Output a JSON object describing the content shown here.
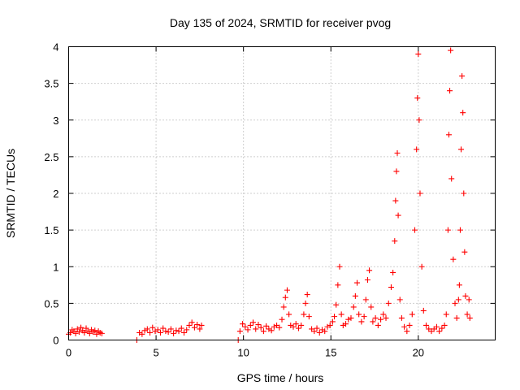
{
  "chart_data": {
    "type": "scatter",
    "title": "Day 135 of 2024, SRMTID for receiver pvog",
    "xlabel": "GPS time / hours",
    "ylabel": "SRMTID / TECUs",
    "xlim": [
      0,
      24.4
    ],
    "ylim": [
      0,
      4
    ],
    "grid": true,
    "xticks": [
      0,
      5,
      10,
      15,
      20
    ],
    "xtick_labels": [
      "0",
      "5",
      "10",
      "15",
      "20"
    ],
    "yticks": [
      0,
      0.5,
      1,
      1.5,
      2,
      2.5,
      3,
      3.5,
      4
    ],
    "ytick_labels": [
      "0",
      "0.5",
      "1",
      "1.5",
      "2",
      "2.5",
      "3",
      "3.5",
      "4"
    ],
    "marker": "+",
    "color": "#ff0000",
    "series": [
      {
        "name": "SRMTID",
        "points": [
          [
            0.0,
            0.08
          ],
          [
            0.1,
            0.1
          ],
          [
            0.2,
            0.14
          ],
          [
            0.3,
            0.12
          ],
          [
            0.4,
            0.09
          ],
          [
            0.5,
            0.15
          ],
          [
            0.6,
            0.11
          ],
          [
            0.7,
            0.17
          ],
          [
            0.8,
            0.13
          ],
          [
            0.9,
            0.1
          ],
          [
            1.0,
            0.16
          ],
          [
            1.1,
            0.12
          ],
          [
            1.2,
            0.09
          ],
          [
            1.3,
            0.14
          ],
          [
            1.4,
            0.11
          ],
          [
            1.5,
            0.13
          ],
          [
            1.6,
            0.08
          ],
          [
            1.7,
            0.12
          ],
          [
            1.8,
            0.1
          ],
          [
            1.9,
            0.09
          ],
          [
            3.9,
            0.0
          ],
          [
            4.05,
            0.1
          ],
          [
            4.2,
            0.08
          ],
          [
            4.35,
            0.13
          ],
          [
            4.5,
            0.15
          ],
          [
            4.65,
            0.1
          ],
          [
            4.8,
            0.17
          ],
          [
            4.95,
            0.12
          ],
          [
            5.1,
            0.14
          ],
          [
            5.25,
            0.1
          ],
          [
            5.4,
            0.16
          ],
          [
            5.55,
            0.12
          ],
          [
            5.7,
            0.11
          ],
          [
            5.85,
            0.15
          ],
          [
            6.0,
            0.09
          ],
          [
            6.15,
            0.13
          ],
          [
            6.3,
            0.12
          ],
          [
            6.45,
            0.16
          ],
          [
            6.6,
            0.1
          ],
          [
            6.75,
            0.14
          ],
          [
            6.9,
            0.2
          ],
          [
            7.05,
            0.24
          ],
          [
            7.2,
            0.17
          ],
          [
            7.35,
            0.21
          ],
          [
            7.5,
            0.15
          ],
          [
            7.6,
            0.2
          ],
          [
            9.7,
            0.0
          ],
          [
            9.8,
            0.12
          ],
          [
            9.95,
            0.22
          ],
          [
            10.1,
            0.18
          ],
          [
            10.25,
            0.14
          ],
          [
            10.4,
            0.2
          ],
          [
            10.55,
            0.24
          ],
          [
            10.7,
            0.15
          ],
          [
            10.85,
            0.21
          ],
          [
            11.0,
            0.17
          ],
          [
            11.15,
            0.12
          ],
          [
            11.3,
            0.19
          ],
          [
            11.45,
            0.15
          ],
          [
            11.6,
            0.13
          ],
          [
            11.75,
            0.18
          ],
          [
            11.9,
            0.2
          ],
          [
            12.05,
            0.17
          ],
          [
            12.2,
            0.28
          ],
          [
            12.3,
            0.45
          ],
          [
            12.4,
            0.58
          ],
          [
            12.5,
            0.68
          ],
          [
            12.6,
            0.35
          ],
          [
            12.7,
            0.2
          ],
          [
            12.85,
            0.18
          ],
          [
            13.0,
            0.22
          ],
          [
            13.15,
            0.16
          ],
          [
            13.3,
            0.2
          ],
          [
            13.45,
            0.35
          ],
          [
            13.55,
            0.5
          ],
          [
            13.65,
            0.62
          ],
          [
            13.75,
            0.32
          ],
          [
            13.9,
            0.15
          ],
          [
            14.05,
            0.12
          ],
          [
            14.2,
            0.16
          ],
          [
            14.35,
            0.1
          ],
          [
            14.5,
            0.14
          ],
          [
            14.65,
            0.12
          ],
          [
            14.8,
            0.18
          ],
          [
            14.95,
            0.2
          ],
          [
            15.1,
            0.25
          ],
          [
            15.2,
            0.32
          ],
          [
            15.3,
            0.48
          ],
          [
            15.4,
            0.75
          ],
          [
            15.5,
            1.0
          ],
          [
            15.6,
            0.35
          ],
          [
            15.7,
            0.2
          ],
          [
            15.85,
            0.22
          ],
          [
            16.0,
            0.28
          ],
          [
            16.15,
            0.3
          ],
          [
            16.3,
            0.45
          ],
          [
            16.4,
            0.6
          ],
          [
            16.5,
            0.78
          ],
          [
            16.6,
            0.35
          ],
          [
            16.75,
            0.25
          ],
          [
            16.9,
            0.32
          ],
          [
            17.0,
            0.55
          ],
          [
            17.1,
            0.82
          ],
          [
            17.2,
            0.95
          ],
          [
            17.3,
            0.45
          ],
          [
            17.4,
            0.25
          ],
          [
            17.55,
            0.3
          ],
          [
            17.7,
            0.2
          ],
          [
            17.85,
            0.28
          ],
          [
            18.0,
            0.35
          ],
          [
            18.15,
            0.3
          ],
          [
            18.3,
            0.5
          ],
          [
            18.45,
            0.72
          ],
          [
            18.55,
            0.92
          ],
          [
            18.65,
            1.35
          ],
          [
            18.7,
            1.9
          ],
          [
            18.75,
            2.3
          ],
          [
            18.8,
            2.55
          ],
          [
            18.85,
            1.7
          ],
          [
            18.95,
            0.55
          ],
          [
            19.05,
            0.3
          ],
          [
            19.2,
            0.18
          ],
          [
            19.35,
            0.12
          ],
          [
            19.5,
            0.2
          ],
          [
            19.65,
            0.35
          ],
          [
            19.8,
            1.5
          ],
          [
            19.9,
            2.6
          ],
          [
            19.95,
            3.3
          ],
          [
            20.0,
            3.9
          ],
          [
            20.05,
            3.0
          ],
          [
            20.1,
            2.0
          ],
          [
            20.2,
            1.0
          ],
          [
            20.3,
            0.4
          ],
          [
            20.45,
            0.2
          ],
          [
            20.6,
            0.15
          ],
          [
            20.75,
            0.12
          ],
          [
            20.9,
            0.15
          ],
          [
            21.05,
            0.18
          ],
          [
            21.2,
            0.12
          ],
          [
            21.35,
            0.16
          ],
          [
            21.5,
            0.2
          ],
          [
            21.6,
            0.35
          ],
          [
            21.7,
            1.5
          ],
          [
            21.75,
            2.8
          ],
          [
            21.8,
            3.4
          ],
          [
            21.85,
            3.95
          ],
          [
            21.9,
            2.2
          ],
          [
            22.0,
            1.1
          ],
          [
            22.1,
            0.5
          ],
          [
            22.2,
            0.3
          ],
          [
            22.3,
            0.55
          ],
          [
            22.35,
            0.75
          ],
          [
            22.4,
            1.5
          ],
          [
            22.45,
            2.6
          ],
          [
            22.5,
            3.6
          ],
          [
            22.55,
            3.1
          ],
          [
            22.6,
            2.0
          ],
          [
            22.65,
            1.2
          ],
          [
            22.7,
            0.6
          ],
          [
            22.8,
            0.35
          ],
          [
            22.9,
            0.55
          ],
          [
            22.95,
            0.3
          ]
        ]
      }
    ]
  }
}
